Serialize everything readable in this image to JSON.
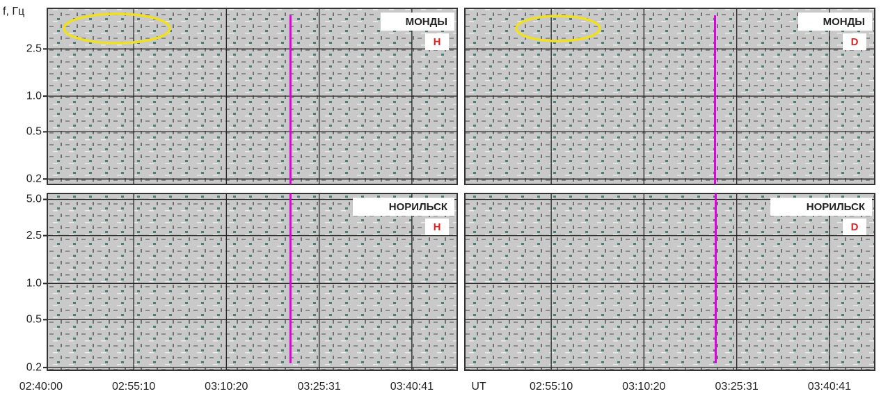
{
  "chart_data": [
    {
      "type": "spectrogram",
      "station": "МОНДЫ",
      "component": "H",
      "ylabel": "f, Гц",
      "log_y": true,
      "ylim": [
        0.18,
        5.5
      ],
      "yticks": [
        0.2,
        0.5,
        {
          "value": 1,
          "label": "1.0"
        },
        2.5
      ],
      "xlim": [
        "02:41:02",
        "03:48:06"
      ],
      "marker_time": "03:20:49",
      "marker_color": "#e000e0"
    },
    {
      "type": "spectrogram",
      "station": "МОНДЫ",
      "component": "D",
      "log_y": true,
      "ylim": [
        0.18,
        5.5
      ],
      "xlim": [
        "02:41:02",
        "03:48:06"
      ],
      "marker_time": "03:21:58",
      "marker_color": "#e000e0"
    },
    {
      "type": "spectrogram",
      "station": "НОРИЛЬСК",
      "component": "H",
      "log_y": true,
      "ylim": [
        0.19,
        5.6
      ],
      "yticks": [
        0.2,
        0.5,
        {
          "value": 1,
          "label": "1.0"
        },
        2.5,
        {
          "value": 5,
          "label": "5.0"
        }
      ],
      "xlim": [
        "02:41:02",
        "03:48:06"
      ],
      "xticks": [
        "02:40:00",
        "02:55:10",
        "03:10:20",
        "03:25:31",
        "03:40:41"
      ],
      "marker_time": "03:20:49",
      "marker_color": "#e000e0"
    },
    {
      "type": "spectrogram",
      "station": "НОРИЛЬСК",
      "component": "D",
      "log_y": true,
      "xlabel": "UT",
      "ylim": [
        0.19,
        5.6
      ],
      "xlim": [
        "02:41:02",
        "03:48:06"
      ],
      "xticks": [
        "02:55:10",
        "03:10:20",
        "03:25:31",
        "03:40:41"
      ],
      "marker_time": "03:22:05",
      "marker_color": "#e000e0"
    }
  ]
}
